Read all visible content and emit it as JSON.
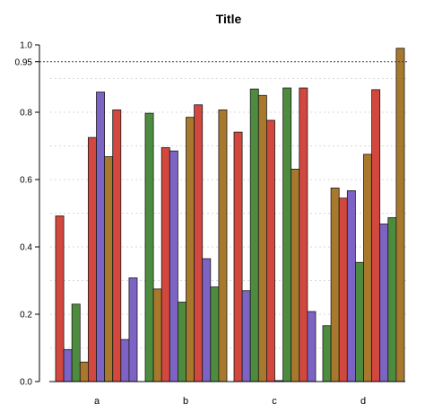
{
  "chart_data": {
    "type": "bar",
    "title": "Title",
    "xlabel": "",
    "ylabel": "",
    "ylim": [
      0,
      1.0
    ],
    "y_ticks": [
      "0.0",
      "0.2",
      "0.4",
      "0.6",
      "0.8",
      "1.0"
    ],
    "y_tick_values": [
      0,
      0.2,
      0.4,
      0.6,
      0.8,
      1.0
    ],
    "reference_line": {
      "value": 0.95,
      "label": "0.95",
      "style": "dotted"
    },
    "grid": "horizontal dotted",
    "legend": "none",
    "categories": [
      "a",
      "b",
      "c",
      "d"
    ],
    "bar_colors": [
      "#d2473e",
      "#7d63c4",
      "#4d8c3f",
      "#a8782c",
      "#d2473e",
      "#7d63c4",
      "#a8782c",
      "#d2473e",
      "#7d63c4",
      "#4d8c3f",
      "#a8782c",
      "#4d8c3f"
    ],
    "groups": [
      {
        "category": "a",
        "values": [
          0.492,
          0.095,
          0.23,
          0.058,
          0.725,
          0.86,
          0.668,
          0.807,
          0.125,
          0.308
        ]
      },
      {
        "category": "b",
        "values": [
          0.797,
          0.275,
          0.695,
          0.685,
          0.236,
          0.785,
          0.822,
          0.365,
          0.281,
          0.807
        ]
      },
      {
        "category": "c",
        "values": [
          0.741,
          0.27,
          0.869,
          0.85,
          0.776,
          0.003,
          0.872,
          0.631,
          0.872,
          0.208
        ]
      },
      {
        "category": "d",
        "values": [
          0.166,
          0.575,
          0.545,
          0.567,
          0.354,
          0.675,
          0.867,
          0.468,
          0.487,
          0.99
        ]
      }
    ],
    "group_bar_colors": [
      [
        "#d2473e",
        "#7d63c4",
        "#4d8c3f",
        "#a8782c",
        "#d2473e",
        "#7d63c4",
        "#a8782c",
        "#d2473e",
        "#7d63c4",
        "#7d63c4"
      ],
      [
        "#4d8c3f",
        "#a8782c",
        "#d2473e",
        "#7d63c4",
        "#4d8c3f",
        "#a8782c",
        "#d2473e",
        "#7d63c4",
        "#4d8c3f",
        "#a8782c"
      ],
      [
        "#d2473e",
        "#7d63c4",
        "#4d8c3f",
        "#a8782c",
        "#d2473e",
        "#7d63c4",
        "#4d8c3f",
        "#a8782c",
        "#d2473e",
        "#7d63c4"
      ],
      [
        "#4d8c3f",
        "#a8782c",
        "#d2473e",
        "#7d63c4",
        "#4d8c3f",
        "#a8782c",
        "#d2473e",
        "#7d63c4",
        "#4d8c3f",
        "#a8782c"
      ]
    ]
  }
}
